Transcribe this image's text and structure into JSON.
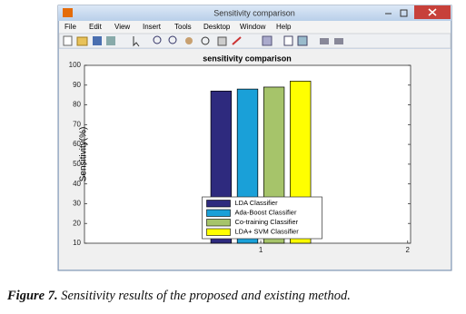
{
  "window": {
    "title": "Sensitivity comparison",
    "menu": [
      "File",
      "Edit",
      "View",
      "Insert",
      "Tools",
      "Desktop",
      "Window",
      "Help"
    ]
  },
  "chart_data": {
    "type": "bar",
    "title": "sensitivity comparison",
    "y_label": "Sensitivity(%)",
    "x": [
      1
    ],
    "series": [
      {
        "name": "LDA Classifier",
        "color": "#2e2a7e",
        "values": [
          87
        ]
      },
      {
        "name": "Ada-Boost Classifier",
        "color": "#1aa0d8",
        "values": [
          88
        ]
      },
      {
        "name": "Co-training Classifier",
        "color": "#a6c46a",
        "values": [
          89
        ]
      },
      {
        "name": "LDA+ SVM Classifier",
        "color": "#ffff00",
        "values": [
          92
        ]
      }
    ],
    "xlim": [
      -0.2,
      2.02
    ],
    "xticks": [
      1,
      2
    ],
    "ylim": [
      10,
      100
    ],
    "yticks": [
      10,
      20,
      30,
      40,
      50,
      60,
      70,
      80,
      90,
      100
    ],
    "legend": "lower center"
  },
  "caption": {
    "label": "Figure 7.",
    "text": " Sensitivity results of the proposed and existing method."
  }
}
